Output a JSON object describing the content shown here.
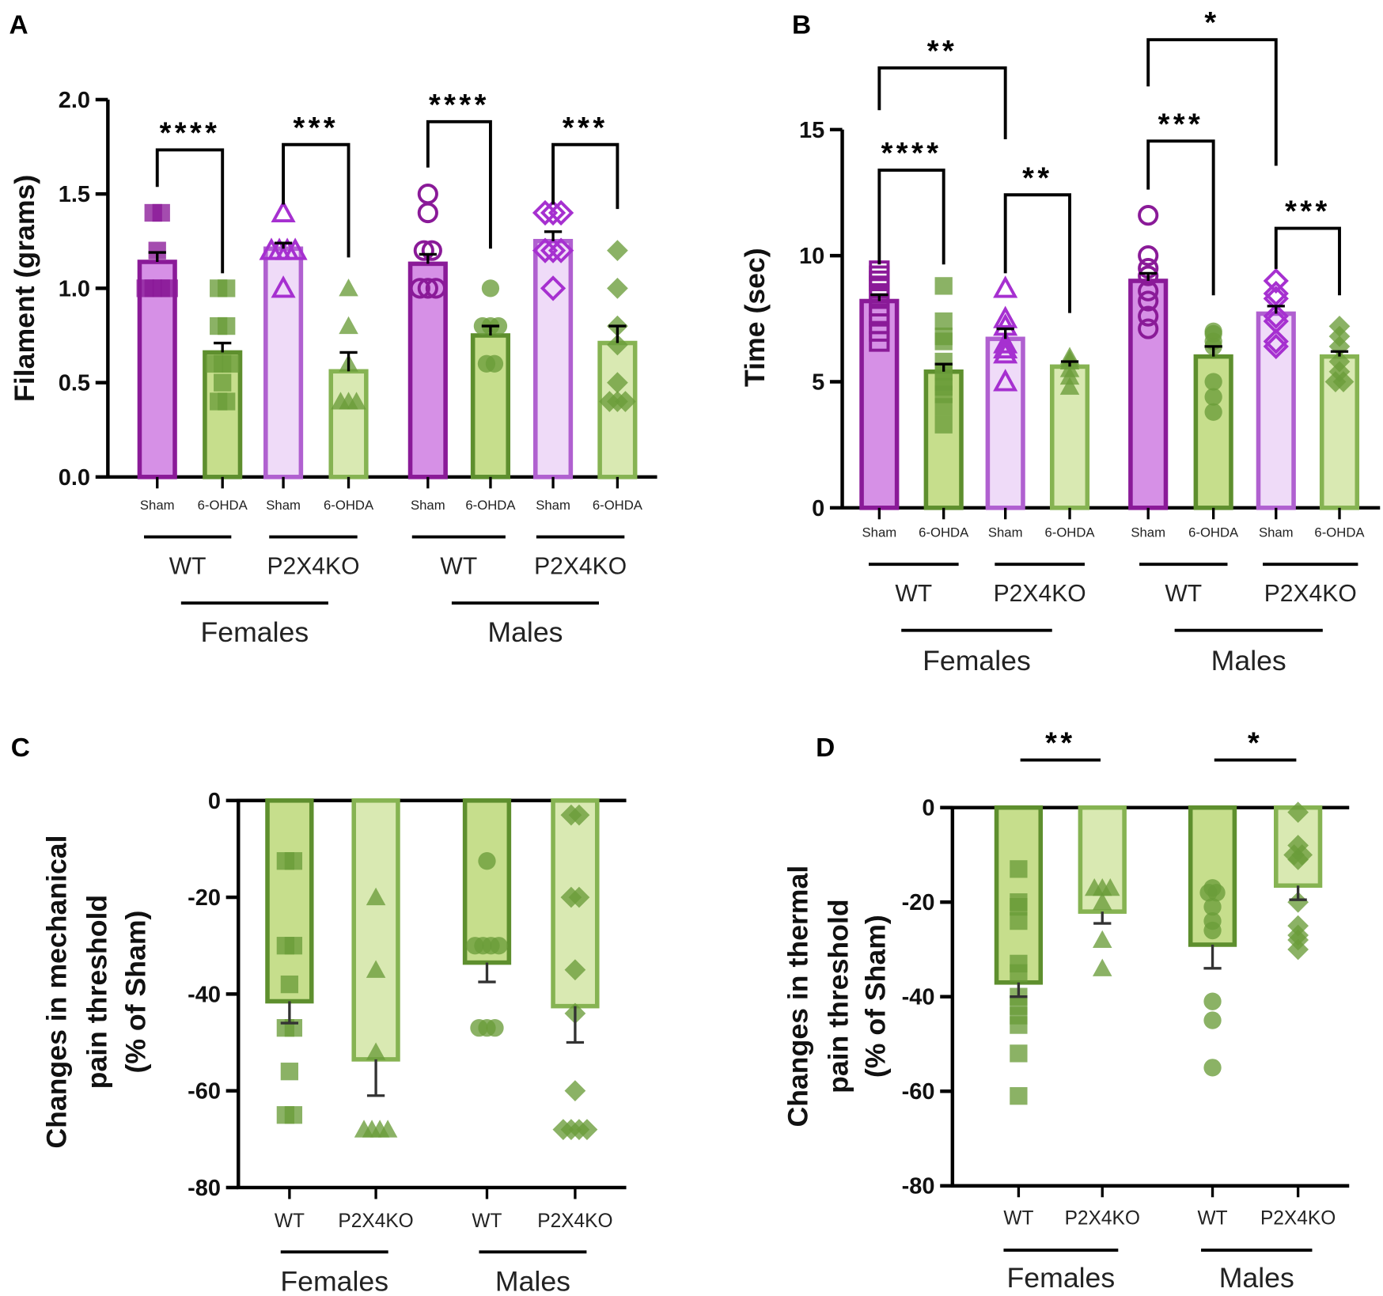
{
  "chart_data": [
    {
      "panel": "A",
      "type": "bar",
      "ylabel": "Filament (grams)",
      "ylim": [
        0,
        2.0
      ],
      "yticks": [
        "0.0",
        "0.5",
        "1.0",
        "1.5",
        "2.0"
      ],
      "ytick_values": [
        0,
        0.5,
        1.0,
        1.5,
        2.0
      ],
      "categories": [
        "Sham",
        "6-OHDA",
        "Sham",
        "6-OHDA",
        "Sham",
        "6-OHDA",
        "Sham",
        "6-OHDA"
      ],
      "genotypes": [
        "WT",
        "P2X4KO",
        "WT",
        "P2X4KO"
      ],
      "sexes": [
        "Females",
        "Males"
      ],
      "series": [
        {
          "name": "Females WT Sham",
          "mean": 1.14,
          "sem": 0.05,
          "points": [
            1.0,
            1.0,
            1.0,
            1.0,
            1.2,
            1.4,
            1.4
          ]
        },
        {
          "name": "Females WT 6-OHDA",
          "mean": 0.66,
          "sem": 0.05,
          "points": [
            1.0,
            1.0,
            0.8,
            0.8,
            0.6,
            0.6,
            0.6,
            0.5,
            0.4,
            0.4
          ]
        },
        {
          "name": "Females P2X4KO Sham",
          "mean": 1.21,
          "sem": 0.03,
          "points": [
            1.4,
            1.2,
            1.2,
            1.2,
            1.2,
            1.0
          ]
        },
        {
          "name": "Females P2X4KO 6-OHDA",
          "mean": 0.56,
          "sem": 0.1,
          "points": [
            1.0,
            0.8,
            0.6,
            0.4,
            0.4,
            0.4
          ]
        },
        {
          "name": "Males WT Sham",
          "mean": 1.13,
          "sem": 0.05,
          "points": [
            1.5,
            1.4,
            1.2,
            1.2,
            1.0,
            1.0,
            1.0
          ]
        },
        {
          "name": "Males WT 6-OHDA",
          "mean": 0.75,
          "sem": 0.05,
          "points": [
            1.0,
            0.8,
            0.8,
            0.8,
            0.6,
            0.6
          ]
        },
        {
          "name": "Males P2X4KO Sham",
          "mean": 1.25,
          "sem": 0.05,
          "points": [
            1.4,
            1.4,
            1.4,
            1.2,
            1.2,
            1.2,
            1.0
          ]
        },
        {
          "name": "Males P2X4KO 6-OHDA",
          "mean": 0.71,
          "sem": 0.09,
          "points": [
            1.2,
            1.0,
            0.8,
            0.7,
            0.5,
            0.4,
            0.4,
            0.4
          ]
        }
      ],
      "significance": [
        {
          "groups": [
            0,
            1
          ],
          "label": "****"
        },
        {
          "groups": [
            2,
            3
          ],
          "label": "***"
        },
        {
          "groups": [
            4,
            5
          ],
          "label": "****"
        },
        {
          "groups": [
            6,
            7
          ],
          "label": "***"
        }
      ]
    },
    {
      "panel": "B",
      "type": "bar",
      "ylabel": "Time (sec)",
      "ylim": [
        0,
        15
      ],
      "yticks": [
        "0",
        "5",
        "10",
        "15"
      ],
      "ytick_values": [
        0,
        5,
        10,
        15
      ],
      "categories": [
        "Sham",
        "6-OHDA",
        "Sham",
        "6-OHDA",
        "Sham",
        "6-OHDA",
        "Sham",
        "6-OHDA"
      ],
      "genotypes": [
        "WT",
        "P2X4KO",
        "WT",
        "P2X4KO"
      ],
      "sexes": [
        "Females",
        "Males"
      ],
      "series": [
        {
          "name": "Females WT Sham",
          "mean": 8.2,
          "sem": 0.25,
          "points": [
            9.4,
            9.2,
            9.0,
            8.8,
            8.4,
            8.0,
            7.6,
            7.3,
            7.0,
            6.6
          ]
        },
        {
          "name": "Females WT 6-OHDA",
          "mean": 5.4,
          "sem": 0.3,
          "points": [
            8.8,
            7.4,
            6.8,
            6.6,
            5.8,
            5.4,
            5.0,
            4.8,
            4.5,
            4.0,
            3.3
          ]
        },
        {
          "name": "Females P2X4KO Sham",
          "mean": 6.7,
          "sem": 0.4,
          "points": [
            8.7,
            7.5,
            7.2,
            6.5,
            6.3,
            6.1,
            5.0
          ]
        },
        {
          "name": "Females P2X4KO 6-OHDA",
          "mean": 5.6,
          "sem": 0.2,
          "points": [
            6.0,
            5.9,
            5.8,
            5.5,
            5.2,
            4.8
          ]
        },
        {
          "name": "Males WT Sham",
          "mean": 9.0,
          "sem": 0.3,
          "points": [
            11.6,
            10.0,
            9.5,
            9.2,
            8.6,
            8.2,
            7.6,
            7.1
          ]
        },
        {
          "name": "Males WT 6-OHDA",
          "mean": 6.0,
          "sem": 0.4,
          "points": [
            7.0,
            6.9,
            6.6,
            6.4,
            5.0,
            4.4,
            3.8
          ]
        },
        {
          "name": "Males P2X4KO Sham",
          "mean": 7.7,
          "sem": 0.3,
          "points": [
            9.0,
            8.5,
            8.3,
            7.6,
            7.4,
            6.6,
            6.4
          ]
        },
        {
          "name": "Males P2X4KO 6-OHDA",
          "mean": 6.0,
          "sem": 0.2,
          "points": [
            7.2,
            6.8,
            6.4,
            5.8,
            5.4,
            5.0,
            5.0
          ]
        }
      ],
      "significance": [
        {
          "groups": [
            0,
            1
          ],
          "label": "****"
        },
        {
          "groups": [
            2,
            3
          ],
          "label": "**"
        },
        {
          "groups": [
            0,
            2
          ],
          "label": "**"
        },
        {
          "groups": [
            4,
            5
          ],
          "label": "***"
        },
        {
          "groups": [
            6,
            7
          ],
          "label": "***"
        },
        {
          "groups": [
            4,
            6
          ],
          "label": "*"
        }
      ]
    },
    {
      "panel": "C",
      "type": "bar",
      "ylabel": [
        "Changes in mechanical",
        "pain threshold",
        "(% of Sham)"
      ],
      "ylim": [
        -80,
        0
      ],
      "yticks": [
        "0",
        "-20",
        "-40",
        "-60",
        "-80"
      ],
      "ytick_values": [
        0,
        -20,
        -40,
        -60,
        -80
      ],
      "categories": [
        "WT",
        "P2X4KO",
        "WT",
        "P2X4KO"
      ],
      "sexes": [
        "Females",
        "Males"
      ],
      "series": [
        {
          "name": "Females WT",
          "mean": -41.5,
          "sem": 4.5,
          "points": [
            -12.5,
            -12.5,
            -30,
            -30,
            -38,
            -47,
            -47,
            -56,
            -65,
            -65
          ]
        },
        {
          "name": "Females P2X4KO",
          "mean": -53.5,
          "sem": 7.5,
          "points": [
            -20,
            -35,
            -52,
            -68,
            -68,
            -68,
            -68
          ]
        },
        {
          "name": "Males WT",
          "mean": -33.5,
          "sem": 4,
          "points": [
            -12.5,
            -30,
            -30,
            -30,
            -30,
            -47,
            -47,
            -47
          ]
        },
        {
          "name": "Males P2X4KO",
          "mean": -42.5,
          "sem": 7.5,
          "points": [
            -3,
            -3,
            -20,
            -20,
            -35,
            -44,
            -60,
            -68,
            -68,
            -68,
            -68
          ]
        }
      ],
      "significance": []
    },
    {
      "panel": "D",
      "type": "bar",
      "ylabel": [
        "Changes in thermal",
        "pain threshold",
        "(% of Sham)"
      ],
      "ylim": [
        -80,
        0
      ],
      "yticks": [
        "0",
        "-20",
        "-40",
        "-60",
        "-80"
      ],
      "ytick_values": [
        0,
        -20,
        -40,
        -60,
        -80
      ],
      "categories": [
        "WT",
        "P2X4KO",
        "WT",
        "P2X4KO"
      ],
      "sexes": [
        "Females",
        "Males"
      ],
      "series": [
        {
          "name": "Females WT",
          "mean": -37,
          "sem": 3,
          "points": [
            -13,
            -20,
            -21,
            -24,
            -33,
            -35,
            -40,
            -42,
            -44,
            -46,
            -52,
            -61
          ]
        },
        {
          "name": "Females P2X4KO",
          "mean": -22,
          "sem": 2.5,
          "points": [
            -17,
            -17,
            -17,
            -20,
            -28,
            -34
          ]
        },
        {
          "name": "Males WT",
          "mean": -29,
          "sem": 5,
          "points": [
            -17,
            -18,
            -18,
            -21,
            -24,
            -26,
            -41,
            -45,
            -55
          ]
        },
        {
          "name": "Males P2X4KO",
          "mean": -16.5,
          "sem": 3,
          "points": [
            -1,
            -8,
            -10,
            -11,
            -10,
            -20,
            -25,
            -28,
            -30,
            -27
          ]
        }
      ],
      "significance": [
        {
          "groups": [
            0,
            1
          ],
          "label": "**"
        },
        {
          "groups": [
            2,
            3
          ],
          "label": "*"
        }
      ]
    }
  ]
}
